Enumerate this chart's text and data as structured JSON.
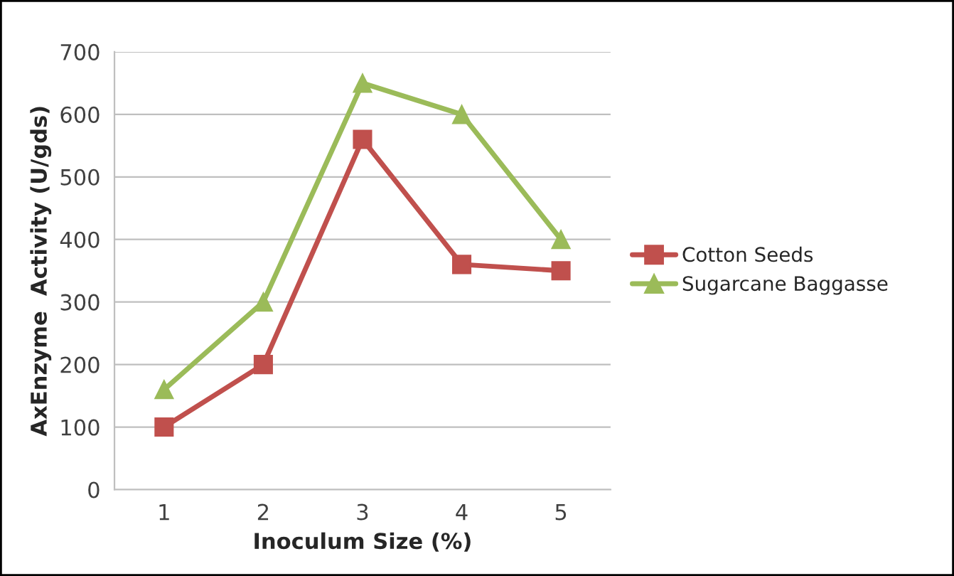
{
  "chart_data": {
    "type": "line",
    "xlabel": "Inoculum Size (%)",
    "ylabel": "AxEnzyme  Activity (U/gds)",
    "categories": [
      "1",
      "2",
      "3",
      "4",
      "5"
    ],
    "series": [
      {
        "name": "Cotton Seeds",
        "color": "#c0504d",
        "marker": "square",
        "values": [
          100,
          200,
          560,
          360,
          350
        ]
      },
      {
        "name": "Sugarcane Baggasse",
        "color": "#9bbb59",
        "marker": "triangle",
        "values": [
          160,
          300,
          650,
          600,
          400
        ]
      }
    ],
    "ylim": [
      0,
      700
    ],
    "yticks": [
      0,
      100,
      200,
      300,
      400,
      500,
      600,
      700
    ],
    "grid": "y",
    "legend": "right",
    "line_style": "solid"
  }
}
